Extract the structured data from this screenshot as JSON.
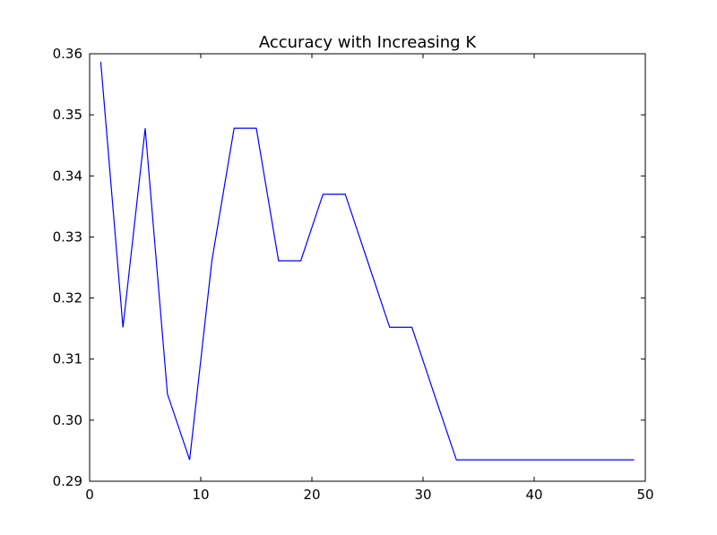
{
  "chart_data": {
    "type": "line",
    "title": "Accuracy with Increasing K",
    "xlabel": "",
    "ylabel": "",
    "xlim": [
      0,
      50
    ],
    "ylim": [
      0.29,
      0.36
    ],
    "xticks": [
      0,
      10,
      20,
      30,
      40,
      50
    ],
    "xtick_labels": [
      "0",
      "10",
      "20",
      "30",
      "40",
      "50"
    ],
    "yticks": [
      0.29,
      0.3,
      0.31,
      0.32,
      0.33,
      0.34,
      0.35,
      0.36
    ],
    "ytick_labels": [
      "0.29",
      "0.30",
      "0.31",
      "0.32",
      "0.33",
      "0.34",
      "0.35",
      "0.36"
    ],
    "grid": false,
    "legend": "none",
    "line_color": "#0000ff",
    "series": [
      {
        "x": [
          1,
          3,
          5,
          7,
          9,
          11,
          13,
          15,
          17,
          19,
          21,
          23,
          25,
          27,
          29,
          31,
          33,
          35,
          37,
          39,
          41,
          43,
          45,
          47,
          49
        ],
        "y": [
          0.3587,
          0.3152,
          0.3478,
          0.3043,
          0.2935,
          0.3261,
          0.3478,
          0.3478,
          0.3261,
          0.3261,
          0.337,
          0.337,
          0.3261,
          0.3152,
          0.3152,
          0.3043,
          0.2935,
          0.2935,
          0.2935,
          0.2935,
          0.2935,
          0.2935,
          0.2935,
          0.2935,
          0.2935
        ]
      }
    ]
  }
}
